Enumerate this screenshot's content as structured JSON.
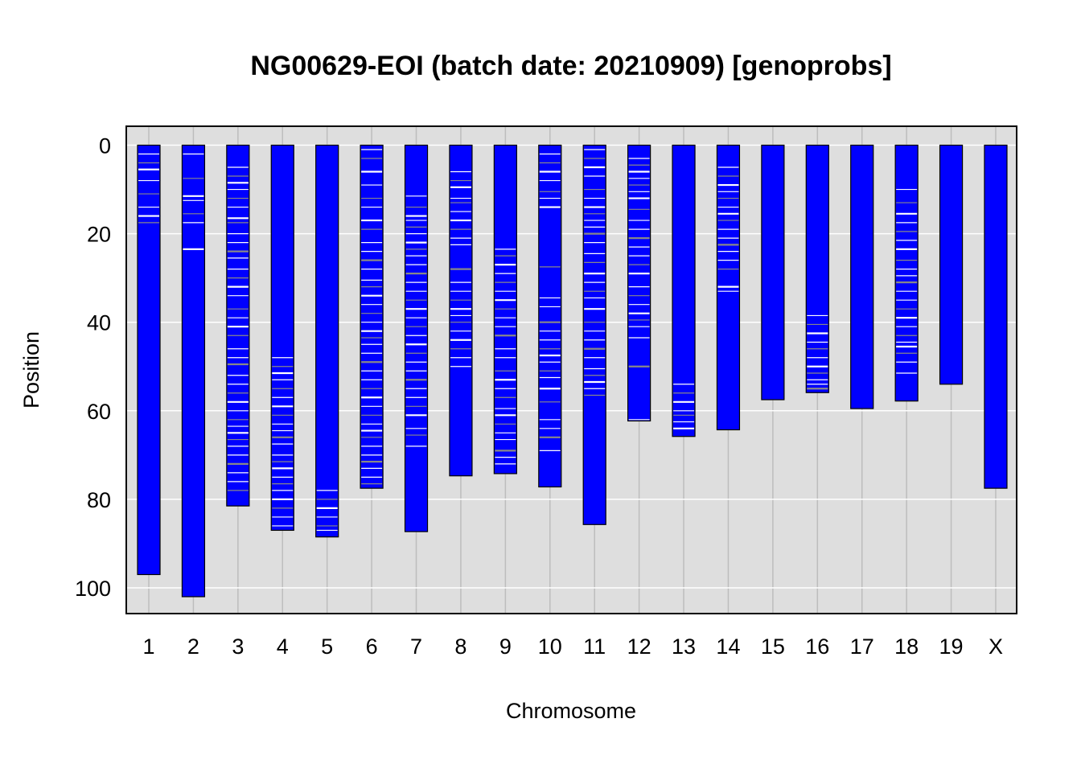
{
  "chart_data": {
    "type": "bar",
    "title": "NG00629-EOI (batch date: 20210909) [genoprobs]",
    "xlabel": "Chromosome",
    "ylabel": "Position",
    "ylim": [
      106,
      -4
    ],
    "y_axis_reversed": true,
    "y_ticks": [
      "0",
      "20",
      "40",
      "60",
      "80",
      "100"
    ],
    "grid": true,
    "categories": [
      "1",
      "2",
      "3",
      "4",
      "5",
      "6",
      "7",
      "8",
      "9",
      "10",
      "11",
      "12",
      "13",
      "14",
      "15",
      "16",
      "17",
      "18",
      "19",
      "X"
    ],
    "chromosome_lengths": [
      97,
      102,
      81.5,
      87,
      88.5,
      77.5,
      87.3,
      74.7,
      74.2,
      77.2,
      85.7,
      62.3,
      65.8,
      64.3,
      57.5,
      55.9,
      59.5,
      57.8,
      54,
      77.5
    ],
    "colors": {
      "chromosome_fill": "#0000ff",
      "crossover_gray": "#888888",
      "crossover_white": "#ffffff",
      "panel_background": "#dedede",
      "grid_line": "#ffffff"
    },
    "crossover_positions": [
      [
        2,
        4,
        5.5,
        8,
        11,
        14,
        16,
        17.5
      ],
      [
        2,
        7.5,
        11.5,
        12.5,
        15.5,
        17.5,
        23.5
      ],
      [
        5,
        7,
        8.5,
        10,
        12,
        14,
        16.5,
        17.5,
        20,
        22,
        24,
        25.5,
        28,
        30,
        32,
        34,
        37,
        39,
        41,
        43,
        46,
        48,
        49.5,
        52,
        54,
        56,
        58,
        60,
        62,
        63.5,
        65,
        66.5,
        68,
        70,
        72,
        74,
        76,
        78
      ],
      [
        48,
        50,
        51.5,
        53,
        55,
        57,
        59,
        61,
        63,
        64.5,
        66,
        67.5,
        70,
        71.5,
        73,
        75,
        76.5,
        78,
        80,
        82,
        84,
        86
      ],
      [
        78,
        80,
        82,
        84,
        86,
        87
      ],
      [
        1,
        3,
        6,
        9,
        12,
        14,
        17,
        19,
        22,
        24,
        26,
        28,
        30.5,
        32,
        34,
        36,
        38,
        40,
        42,
        43.5,
        45,
        47,
        49,
        51,
        53,
        55,
        57,
        59,
        61,
        63,
        64.5,
        66,
        68,
        70,
        71.5,
        73,
        75,
        76.5
      ],
      [
        11.5,
        14,
        16,
        17,
        18.5,
        20,
        22,
        23.5,
        25,
        27,
        29,
        31,
        33,
        35,
        37,
        39,
        41,
        43,
        45,
        47,
        49,
        51,
        53,
        55,
        57,
        59,
        61,
        64,
        65.5,
        68
      ],
      [
        6,
        8,
        9.5,
        12,
        13,
        15,
        17,
        19,
        21,
        22.5,
        28,
        31,
        33,
        35,
        37,
        38.5,
        40,
        42,
        44,
        46,
        48,
        50
      ],
      [
        23.5,
        25,
        27,
        29,
        31,
        33,
        35,
        37,
        39,
        41,
        43,
        46,
        48,
        51,
        53,
        55,
        57,
        59.5,
        61,
        63,
        65,
        66.5,
        69,
        70.5,
        72
      ],
      [
        2,
        4,
        6,
        8,
        10.5,
        12,
        14,
        27.5,
        34.5,
        36.5,
        40,
        42,
        44,
        46,
        47.5,
        49,
        51,
        52.5,
        55,
        58,
        62,
        64,
        66,
        69
      ],
      [
        1,
        3,
        5,
        7,
        10,
        12,
        14,
        15.5,
        17,
        18.5,
        20,
        22,
        24.5,
        26.5,
        29,
        31,
        33,
        34.5,
        37,
        40,
        42,
        44,
        46,
        48,
        50.5,
        52,
        53.5,
        55,
        56.5
      ],
      [
        3,
        4.5,
        6,
        7.5,
        9,
        10.5,
        12,
        14.5,
        17,
        19,
        21,
        23,
        25,
        27,
        29,
        32,
        34,
        36,
        38,
        39.5,
        41,
        43.5,
        50,
        62
      ],
      [
        54,
        56,
        58,
        60,
        61,
        62.5,
        64
      ],
      [
        5,
        7,
        9,
        10.5,
        12,
        14,
        15.5,
        17,
        19,
        21,
        22.5,
        24,
        26,
        28,
        32,
        33
      ],
      [],
      [
        38.5,
        40.5,
        42.5,
        44.5,
        46,
        48,
        50,
        51.5,
        53,
        54,
        55
      ],
      [],
      [
        10,
        13,
        15.5,
        17.5,
        19.5,
        21.5,
        23.5,
        26,
        28,
        29.5,
        31,
        33,
        35,
        37,
        39,
        41,
        43,
        44.5,
        45.5,
        47,
        49,
        51.5
      ],
      [],
      []
    ]
  }
}
